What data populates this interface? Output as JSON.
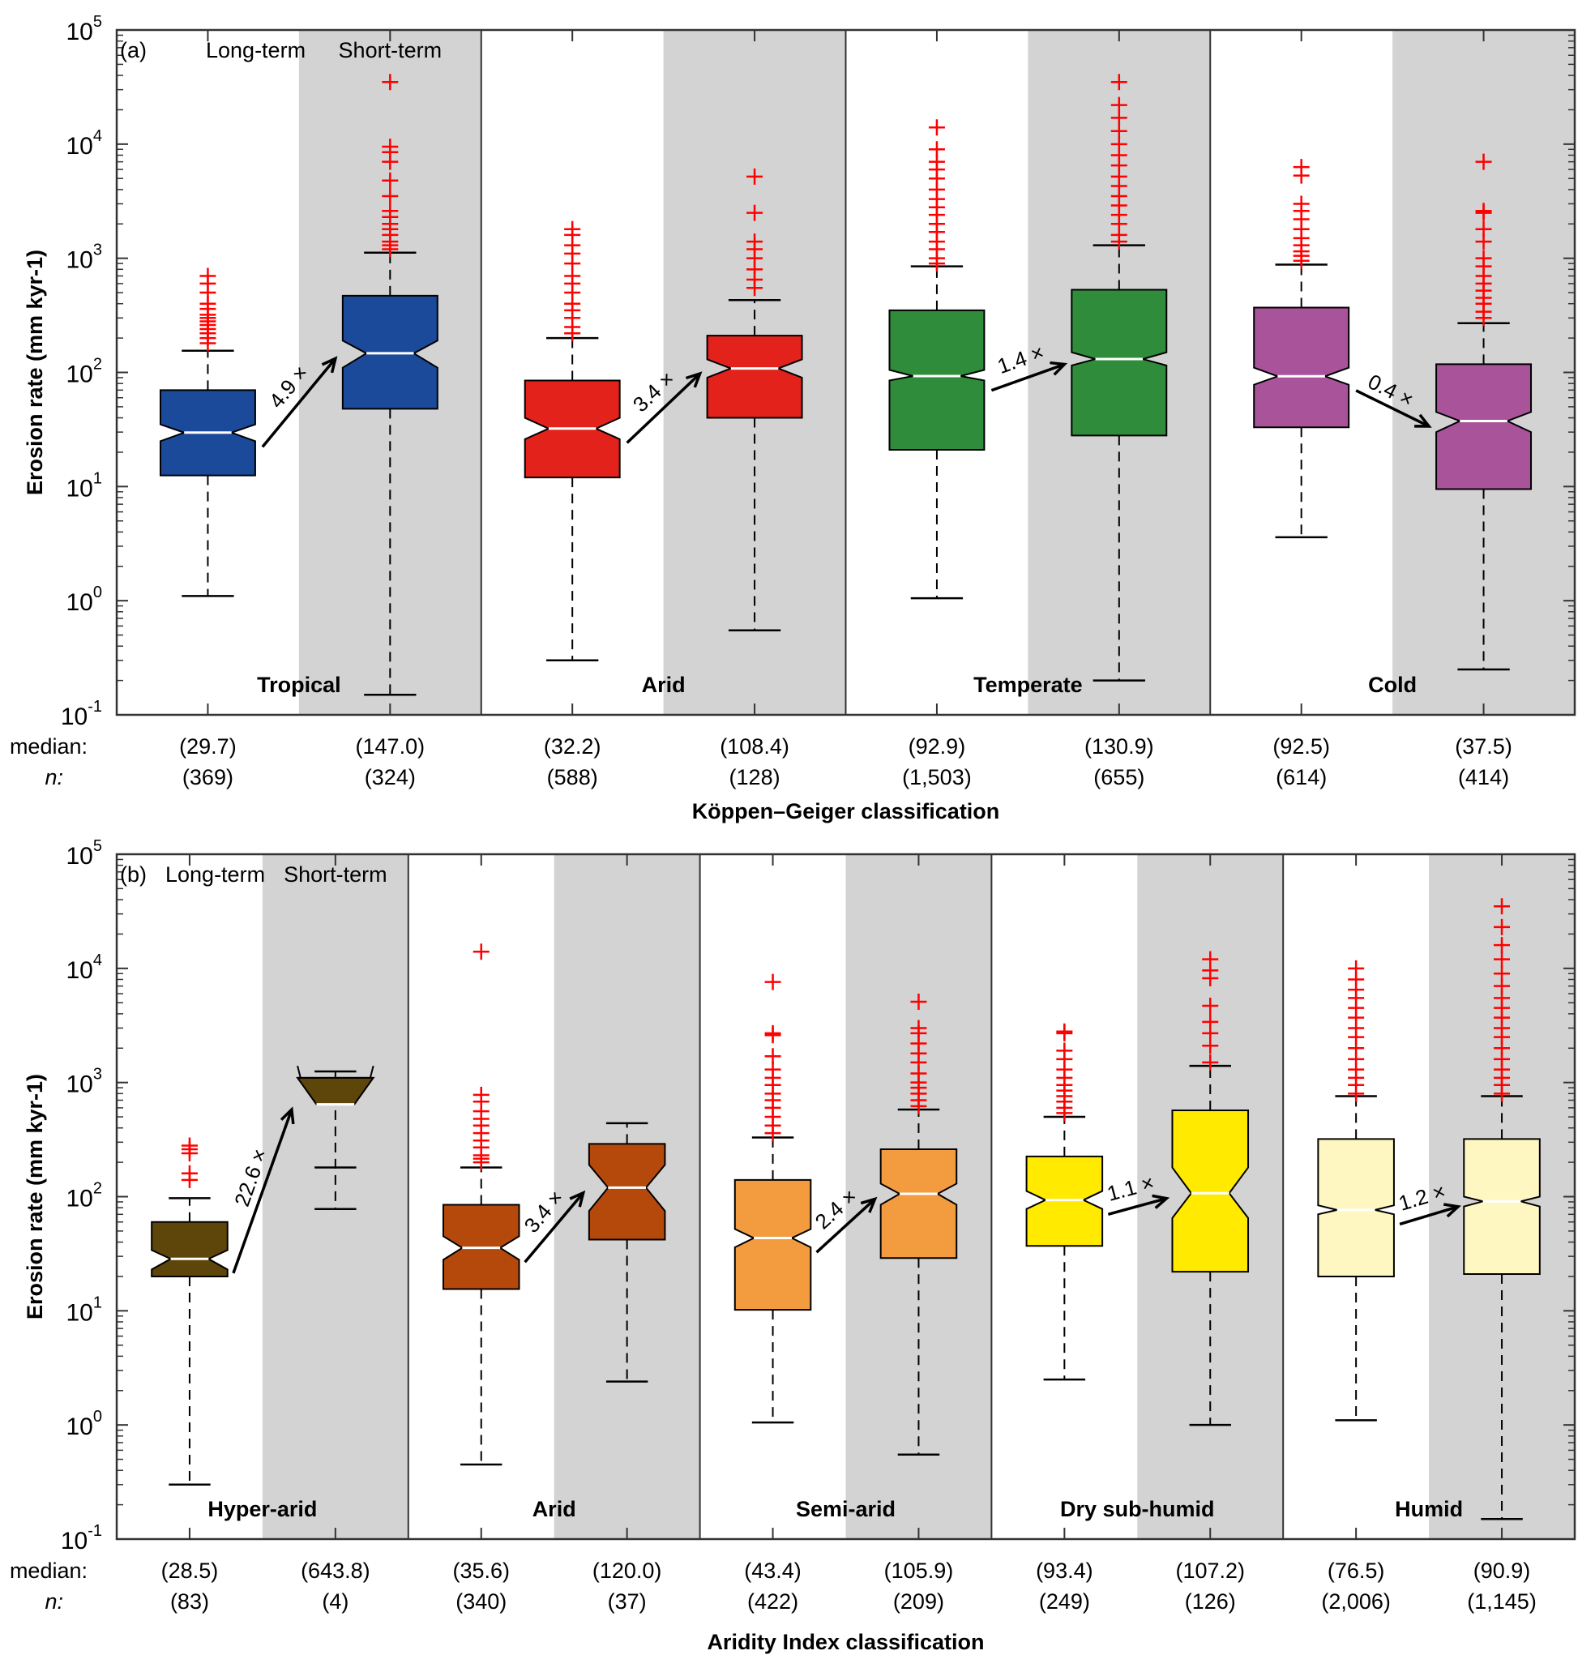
{
  "chart_data": [
    {
      "type": "boxplot",
      "panel": "(a)",
      "y_scale": "log",
      "ylim": [
        0.1,
        100000
      ],
      "ylabel": "Erosion rate (mm kyr-1)",
      "xlabel": "Köppen–Geiger classification",
      "header_left": "Long-term",
      "header_right": "Short-term",
      "row_labels": {
        "median": "median:",
        "n": "n:"
      },
      "groups": [
        {
          "name": "Tropical",
          "color": "#1b4a9a",
          "ratio_label": "4.9 ×",
          "boxes": [
            {
              "term": "Long-term",
              "median": 29.7,
              "q1": 12.5,
              "q3": 70,
              "whisker_low": 1.1,
              "whisker_high": 155,
              "notch_low": 25,
              "notch_high": 35,
              "n": 369,
              "median_label": "(29.7)",
              "n_label": "(369)",
              "outliers": [
                180,
                200,
                220,
                240,
                260,
                280,
                300,
                320,
                360,
                400,
                500,
                600,
                700
              ]
            },
            {
              "term": "Short-term",
              "median": 147.0,
              "q1": 48,
              "q3": 470,
              "whisker_low": 0.15,
              "whisker_high": 1120,
              "notch_low": 110,
              "notch_high": 190,
              "n": 324,
              "median_label": "(147.0)",
              "n_label": "(324)",
              "outliers": [
                1200,
                1300,
                1400,
                1600,
                1800,
                2000,
                2300,
                2600,
                3500,
                4800,
                7000,
                8500,
                9500,
                35000
              ]
            }
          ]
        },
        {
          "name": "Arid",
          "color": "#e3231b",
          "ratio_label": "3.4 ×",
          "boxes": [
            {
              "term": "Long-term",
              "median": 32.2,
              "q1": 12,
              "q3": 85,
              "whisker_low": 0.3,
              "whisker_high": 200,
              "notch_low": 26,
              "notch_high": 40,
              "n": 588,
              "median_label": "(32.2)",
              "n_label": "(588)",
              "outliers": [
                220,
                250,
                300,
                350,
                400,
                500,
                600,
                700,
                900,
                1100,
                1300,
                1600,
                1800
              ]
            },
            {
              "term": "Short-term",
              "median": 108.4,
              "q1": 40,
              "q3": 210,
              "whisker_low": 0.55,
              "whisker_high": 430,
              "notch_low": 90,
              "notch_high": 130,
              "n": 128,
              "median_label": "(108.4)",
              "n_label": "(128)",
              "outliers": [
                550,
                650,
                800,
                1000,
                1200,
                1400,
                2500,
                5200
              ]
            }
          ]
        },
        {
          "name": "Temperate",
          "color": "#2f8c3b",
          "ratio_label": "1.4 ×",
          "boxes": [
            {
              "term": "Long-term",
              "median": 92.9,
              "q1": 21,
              "q3": 350,
              "whisker_low": 1.05,
              "whisker_high": 850,
              "notch_low": 85,
              "notch_high": 105,
              "n": 1503,
              "median_label": "(92.9)",
              "n_label": "(1,503)",
              "outliers": [
                900,
                1000,
                1200,
                1400,
                1700,
                2000,
                2400,
                2800,
                3300,
                4000,
                5000,
                6000,
                7000,
                9000,
                14000
              ]
            },
            {
              "term": "Short-term",
              "median": 130.9,
              "q1": 28,
              "q3": 530,
              "whisker_low": 0.2,
              "whisker_high": 1300,
              "notch_low": 115,
              "notch_high": 150,
              "n": 655,
              "median_label": "(130.9)",
              "n_label": "(655)",
              "outliers": [
                1400,
                1600,
                2000,
                2400,
                2900,
                3500,
                4300,
                5200,
                6500,
                8000,
                10000,
                13000,
                17000,
                22000,
                35000
              ]
            }
          ]
        },
        {
          "name": "Cold",
          "color": "#a8539a",
          "ratio_label": "0.4 ×",
          "boxes": [
            {
              "term": "Long-term",
              "median": 92.5,
              "q1": 33,
              "q3": 370,
              "whisker_low": 3.6,
              "whisker_high": 880,
              "notch_low": 78,
              "notch_high": 110,
              "n": 614,
              "median_label": "(92.5)",
              "n_label": "(614)",
              "outliers": [
                950,
                1050,
                1150,
                1300,
                1500,
                1800,
                2200,
                2600,
                3000,
                5300,
                6300
              ]
            },
            {
              "term": "Short-term",
              "median": 37.5,
              "q1": 9.5,
              "q3": 118,
              "whisker_low": 0.25,
              "whisker_high": 270,
              "notch_low": 30,
              "notch_high": 45,
              "n": 414,
              "median_label": "(37.5)",
              "n_label": "(414)",
              "outliers": [
                300,
                340,
                400,
                450,
                520,
                600,
                700,
                850,
                1000,
                1400,
                1800,
                2500,
                2600,
                7000
              ]
            }
          ]
        }
      ]
    },
    {
      "type": "boxplot",
      "panel": "(b)",
      "y_scale": "log",
      "ylim": [
        0.1,
        100000
      ],
      "ylabel": "Erosion rate (mm kyr-1)",
      "xlabel": "Aridity Index classification",
      "header_left": "Long-term",
      "header_right": "Short-term",
      "row_labels": {
        "median": "median:",
        "n": "n:"
      },
      "groups": [
        {
          "name": "Hyper-arid",
          "color": "#5e4509",
          "ratio_label": "22.6 ×",
          "boxes": [
            {
              "term": "Long-term",
              "median": 28.5,
              "q1": 20,
              "q3": 60,
              "whisker_low": 0.3,
              "whisker_high": 97,
              "notch_low": 23,
              "notch_high": 34,
              "n": 83,
              "median_label": "(28.5)",
              "n_label": "(83)",
              "outliers": [
                140,
                160,
                240,
                260,
                280
              ]
            },
            {
              "term": "Short-term",
              "median": 643.8,
              "q1": 1100,
              "q3": 1100,
              "whisker_low": 78,
              "whisker_high": 1250,
              "notch_low": 640,
              "notch_high": 1400,
              "n": 4,
              "median_label": "(643.8)",
              "n_label": "(4)",
              "outliers": [],
              "lower_cap": 180
            }
          ]
        },
        {
          "name": "Arid",
          "color": "#b5490b",
          "ratio_label": "3.4 ×",
          "boxes": [
            {
              "term": "Long-term",
              "median": 35.6,
              "q1": 15.5,
              "q3": 85,
              "whisker_low": 0.45,
              "whisker_high": 180,
              "notch_low": 28,
              "notch_high": 45,
              "n": 340,
              "median_label": "(35.6)",
              "n_label": "(340)",
              "outliers": [
                200,
                215,
                230,
                270,
                310,
                360,
                420,
                480,
                560,
                680,
                780,
                14000
              ]
            },
            {
              "term": "Short-term",
              "median": 120.0,
              "q1": 42,
              "q3": 290,
              "whisker_low": 2.4,
              "whisker_high": 440,
              "notch_low": 75,
              "notch_high": 190,
              "n": 37,
              "median_label": "(120.0)",
              "n_label": "(37)",
              "outliers": []
            }
          ]
        },
        {
          "name": "Semi-arid",
          "color": "#f29b3f",
          "ratio_label": "2.4 ×",
          "boxes": [
            {
              "term": "Long-term",
              "median": 43.4,
              "q1": 10.2,
              "q3": 140,
              "whisker_low": 1.05,
              "whisker_high": 330,
              "notch_low": 36,
              "notch_high": 52,
              "n": 422,
              "median_label": "(43.4)",
              "n_label": "(422)",
              "outliers": [
                360,
                420,
                500,
                600,
                700,
                800,
                950,
                1100,
                1300,
                1700,
                2600,
                2700,
                7600
              ]
            },
            {
              "term": "Short-term",
              "median": 105.9,
              "q1": 29,
              "q3": 260,
              "whisker_low": 0.55,
              "whisker_high": 580,
              "notch_low": 85,
              "notch_high": 130,
              "n": 209,
              "median_label": "(105.9)",
              "n_label": "(209)",
              "outliers": [
                620,
                700,
                800,
                900,
                1000,
                1200,
                1500,
                1800,
                2200,
                2700,
                3000,
                5100
              ]
            }
          ]
        },
        {
          "name": "Dry sub-humid",
          "color": "#ffea00",
          "ratio_label": "1.1 ×",
          "boxes": [
            {
              "term": "Long-term",
              "median": 93.4,
              "q1": 37,
              "q3": 225,
              "whisker_low": 2.5,
              "whisker_high": 500,
              "notch_low": 78,
              "notch_high": 112,
              "n": 249,
              "median_label": "(93.4)",
              "n_label": "(249)",
              "outliers": [
                540,
                600,
                680,
                760,
                850,
                950,
                1100,
                1300,
                1600,
                1900,
                2700,
                2800
              ]
            },
            {
              "term": "Short-term",
              "median": 107.2,
              "q1": 22,
              "q3": 570,
              "whisker_low": 1.0,
              "whisker_high": 1400,
              "notch_low": 65,
              "notch_high": 180,
              "n": 126,
              "median_label": "(107.2)",
              "n_label": "(126)",
              "outliers": [
                1500,
                2100,
                2700,
                3400,
                4700,
                8200,
                9600,
                12000
              ]
            }
          ]
        },
        {
          "name": "Humid",
          "color": "#fff7c2",
          "ratio_label": "1.2 ×",
          "boxes": [
            {
              "term": "Long-term",
              "median": 76.5,
              "q1": 20,
              "q3": 320,
              "whisker_low": 1.1,
              "whisker_high": 760,
              "notch_low": 70,
              "notch_high": 84,
              "n": 2006,
              "median_label": "(76.5)",
              "n_label": "(2,006)",
              "outliers": [
                800,
                950,
                1100,
                1300,
                1600,
                2000,
                2500,
                3000,
                3700,
                4500,
                5500,
                6500,
                8000,
                10000
              ]
            },
            {
              "term": "Short-term",
              "median": 90.9,
              "q1": 21,
              "q3": 320,
              "whisker_low": 0.15,
              "whisker_high": 760,
              "notch_low": 82,
              "notch_high": 100,
              "n": 1145,
              "median_label": "(90.9)",
              "n_label": "(1,145)",
              "outliers": [
                800,
                950,
                1100,
                1300,
                1600,
                2000,
                2500,
                3000,
                3700,
                4500,
                5500,
                7000,
                9000,
                12000,
                16000,
                23000,
                35000
              ]
            }
          ]
        }
      ]
    }
  ],
  "y_ticks": [
    {
      "base": "10",
      "exp": "-1",
      "value": 0.1
    },
    {
      "base": "10",
      "exp": "0",
      "value": 1
    },
    {
      "base": "10",
      "exp": "1",
      "value": 10
    },
    {
      "base": "10",
      "exp": "2",
      "value": 100
    },
    {
      "base": "10",
      "exp": "3",
      "value": 1000
    },
    {
      "base": "10",
      "exp": "4",
      "value": 10000
    },
    {
      "base": "10",
      "exp": "5",
      "value": 100000
    }
  ],
  "colors": {
    "shade": "#d3d3d3",
    "outlier": "#ff0000",
    "median_line": "#ffffff"
  }
}
